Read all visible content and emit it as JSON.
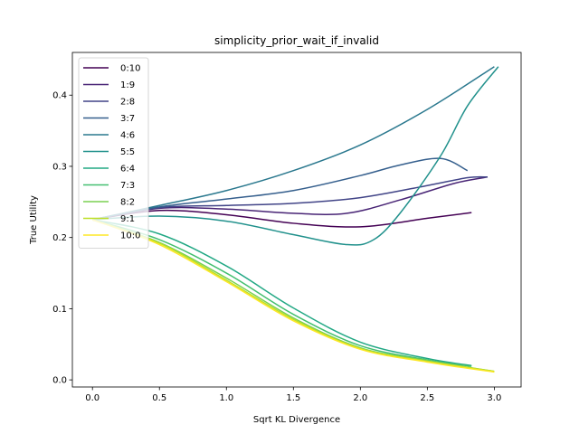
{
  "chart_data": {
    "type": "line",
    "title": "simplicity_prior_wait_if_invalid",
    "xlabel": "Sqrt KL Divergence",
    "ylabel": "True Utility",
    "xlim": [
      -0.15,
      3.2
    ],
    "ylim": [
      -0.01,
      0.46
    ],
    "xticks": [
      0.0,
      0.5,
      1.0,
      1.5,
      2.0,
      2.5,
      3.0
    ],
    "xtick_labels": [
      "0.0",
      "0.5",
      "1.0",
      "1.5",
      "2.0",
      "2.5",
      "3.0"
    ],
    "yticks": [
      0.0,
      0.1,
      0.2,
      0.3,
      0.4
    ],
    "ytick_labels": [
      "0.0",
      "0.1",
      "0.2",
      "0.3",
      "0.4"
    ],
    "grid": false,
    "legend_position": "upper-left",
    "series": [
      {
        "name": "0:10",
        "color": "#440154",
        "x": [
          0.0,
          0.5,
          1.0,
          1.5,
          2.0,
          2.5,
          2.83
        ],
        "y": [
          0.225,
          0.238,
          0.232,
          0.22,
          0.215,
          0.227,
          0.235
        ]
      },
      {
        "name": "1:9",
        "color": "#482475",
        "x": [
          0.0,
          0.5,
          1.0,
          1.5,
          1.9,
          2.3,
          2.7,
          2.95
        ],
        "y": [
          0.225,
          0.241,
          0.24,
          0.234,
          0.234,
          0.253,
          0.276,
          0.285
        ]
      },
      {
        "name": "2:8",
        "color": "#414487",
        "x": [
          0.0,
          0.5,
          1.0,
          1.5,
          2.0,
          2.5,
          2.8,
          2.95
        ],
        "y": [
          0.225,
          0.242,
          0.245,
          0.248,
          0.256,
          0.273,
          0.284,
          0.285
        ]
      },
      {
        "name": "3:7",
        "color": "#355f8d",
        "x": [
          0.0,
          0.5,
          1.0,
          1.5,
          2.0,
          2.3,
          2.6,
          2.8
        ],
        "y": [
          0.225,
          0.243,
          0.254,
          0.266,
          0.287,
          0.302,
          0.311,
          0.294
        ]
      },
      {
        "name": "4:6",
        "color": "#2a788e",
        "x": [
          0.0,
          0.5,
          1.0,
          1.5,
          2.0,
          2.5,
          3.0
        ],
        "y": [
          0.225,
          0.245,
          0.266,
          0.294,
          0.33,
          0.38,
          0.44
        ]
      },
      {
        "name": "5:5",
        "color": "#21918c",
        "x": [
          0.0,
          0.5,
          1.0,
          1.5,
          1.9,
          2.1,
          2.3,
          2.6,
          2.8,
          3.03
        ],
        "y": [
          0.225,
          0.23,
          0.223,
          0.204,
          0.19,
          0.197,
          0.235,
          0.315,
          0.385,
          0.44
        ]
      },
      {
        "name": "6:4",
        "color": "#22a884",
        "x": [
          0.0,
          0.5,
          1.0,
          1.5,
          2.0,
          2.5,
          2.83
        ],
        "y": [
          0.225,
          0.205,
          0.16,
          0.101,
          0.053,
          0.03,
          0.02
        ]
      },
      {
        "name": "7:3",
        "color": "#44bf70",
        "x": [
          0.0,
          0.5,
          1.0,
          1.5,
          2.0,
          2.5,
          2.83
        ],
        "y": [
          0.225,
          0.197,
          0.15,
          0.092,
          0.048,
          0.028,
          0.019
        ]
      },
      {
        "name": "8:2",
        "color": "#7ad151",
        "x": [
          0.0,
          0.5,
          1.0,
          1.5,
          2.0,
          2.5,
          3.0
        ],
        "y": [
          0.225,
          0.193,
          0.143,
          0.087,
          0.045,
          0.027,
          0.012
        ]
      },
      {
        "name": "9:1",
        "color": "#bddf26",
        "x": [
          0.0,
          0.5,
          1.0,
          1.5,
          2.0,
          2.5,
          3.0
        ],
        "y": [
          0.225,
          0.192,
          0.14,
          0.085,
          0.044,
          0.026,
          0.012
        ]
      },
      {
        "name": "10:0",
        "color": "#fde725",
        "x": [
          0.0,
          0.5,
          1.0,
          1.5,
          2.0,
          2.5,
          3.0
        ],
        "y": [
          0.225,
          0.19,
          0.138,
          0.083,
          0.043,
          0.025,
          0.011
        ]
      }
    ]
  }
}
